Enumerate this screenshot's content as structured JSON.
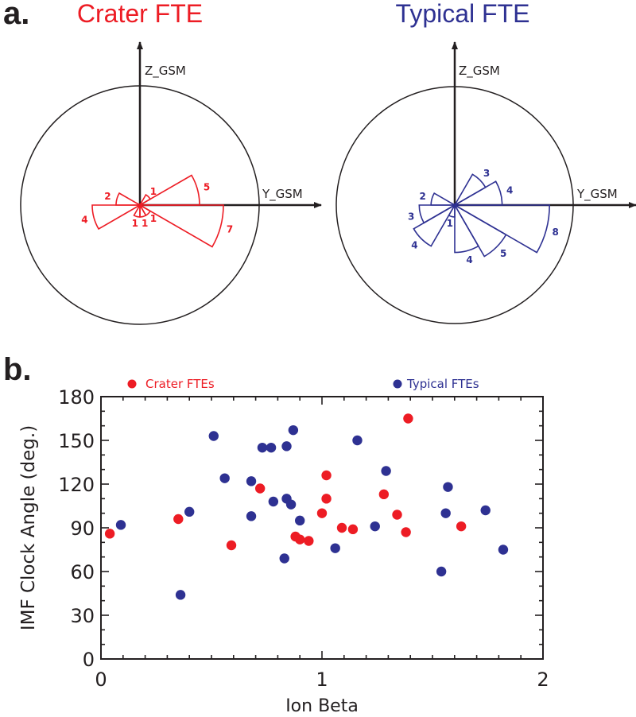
{
  "colors": {
    "crater": "#ed1c24",
    "typical": "#2e3192",
    "axis": "#231f20"
  },
  "panels": {
    "a": {
      "label": "a."
    },
    "b": {
      "label": "b."
    }
  },
  "chart_data": [
    {
      "type": "rose",
      "title": "Crater FTE",
      "series_color": "crater",
      "axis_labels": {
        "z": "Z_GSM",
        "y": "Y_GSM"
      },
      "bin_width_deg": 30,
      "max_count": 10,
      "sectors": [
        {
          "from_deg": 0,
          "to_deg": 30,
          "count": 5
        },
        {
          "from_deg": 30,
          "to_deg": 60,
          "count": 1
        },
        {
          "from_deg": 150,
          "to_deg": 180,
          "count": 2
        },
        {
          "from_deg": 180,
          "to_deg": 210,
          "count": 4
        },
        {
          "from_deg": 240,
          "to_deg": 270,
          "count": 1
        },
        {
          "from_deg": 270,
          "to_deg": 300,
          "count": 1
        },
        {
          "from_deg": 300,
          "to_deg": 330,
          "count": 1
        },
        {
          "from_deg": 330,
          "to_deg": 360,
          "count": 7
        }
      ]
    },
    {
      "type": "rose",
      "title": "Typical FTE",
      "series_color": "typical",
      "axis_labels": {
        "z": "Z_GSM",
        "y": "Y_GSM"
      },
      "bin_width_deg": 30,
      "max_count": 10,
      "sectors": [
        {
          "from_deg": 0,
          "to_deg": 30,
          "count": 4
        },
        {
          "from_deg": 30,
          "to_deg": 60,
          "count": 3
        },
        {
          "from_deg": 150,
          "to_deg": 180,
          "count": 2
        },
        {
          "from_deg": 180,
          "to_deg": 210,
          "count": 3
        },
        {
          "from_deg": 210,
          "to_deg": 240,
          "count": 4
        },
        {
          "from_deg": 240,
          "to_deg": 270,
          "count": 1
        },
        {
          "from_deg": 270,
          "to_deg": 300,
          "count": 4
        },
        {
          "from_deg": 300,
          "to_deg": 330,
          "count": 5
        },
        {
          "from_deg": 330,
          "to_deg": 360,
          "count": 8
        }
      ]
    },
    {
      "type": "scatter",
      "title": "",
      "xlabel": "Ion Beta",
      "ylabel": "IMF Clock Angle (deg.)",
      "xlim": [
        0,
        2
      ],
      "ylim": [
        0,
        180
      ],
      "xticks": [
        0,
        1,
        2
      ],
      "yticks": [
        0,
        30,
        60,
        90,
        120,
        150,
        180
      ],
      "legend": {
        "placement": "top",
        "entries": [
          "Crater FTEs",
          "Typical FTEs"
        ]
      },
      "series": [
        {
          "name": "Crater FTEs",
          "color": "crater",
          "points": [
            [
              0.04,
              86
            ],
            [
              0.35,
              96
            ],
            [
              0.59,
              78
            ],
            [
              0.72,
              117
            ],
            [
              0.88,
              84
            ],
            [
              0.9,
              82
            ],
            [
              0.94,
              81
            ],
            [
              1.0,
              100
            ],
            [
              1.02,
              110
            ],
            [
              1.02,
              126
            ],
            [
              1.09,
              90
            ],
            [
              1.14,
              89
            ],
            [
              1.28,
              113
            ],
            [
              1.34,
              99
            ],
            [
              1.38,
              87
            ],
            [
              1.39,
              165
            ],
            [
              1.63,
              91
            ]
          ]
        },
        {
          "name": "Typical FTEs",
          "color": "typical",
          "points": [
            [
              0.09,
              92
            ],
            [
              0.36,
              44
            ],
            [
              0.4,
              101
            ],
            [
              0.51,
              153
            ],
            [
              0.56,
              124
            ],
            [
              0.68,
              122
            ],
            [
              0.68,
              98
            ],
            [
              0.73,
              145
            ],
            [
              0.77,
              145
            ],
            [
              0.78,
              108
            ],
            [
              0.83,
              69
            ],
            [
              0.84,
              146
            ],
            [
              0.84,
              110
            ],
            [
              0.86,
              106
            ],
            [
              0.87,
              157
            ],
            [
              0.9,
              95
            ],
            [
              1.06,
              76
            ],
            [
              1.16,
              150
            ],
            [
              1.24,
              91
            ],
            [
              1.29,
              129
            ],
            [
              1.54,
              60
            ],
            [
              1.56,
              100
            ],
            [
              1.57,
              118
            ],
            [
              1.74,
              102
            ],
            [
              1.82,
              75
            ]
          ]
        }
      ]
    }
  ]
}
